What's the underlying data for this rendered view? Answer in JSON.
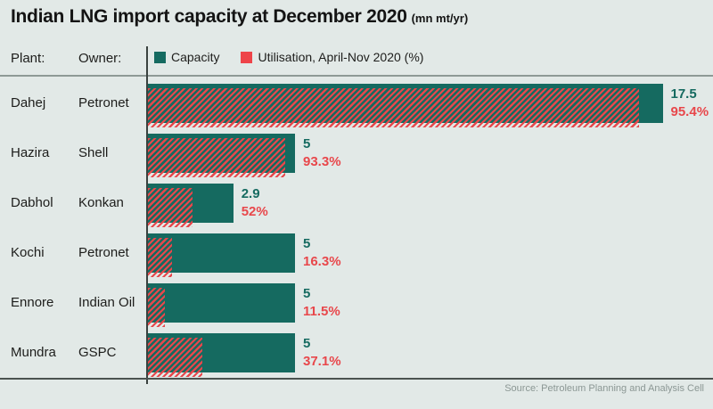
{
  "header": {
    "plant_col": "Plant:",
    "owner_col": "Owner:"
  },
  "chart_data": {
    "type": "bar",
    "orientation": "horizontal",
    "title": "Indian LNG import capacity at December 2020",
    "unit_note": "(mn mt/yr)",
    "legend_position": "top",
    "grid": false,
    "xlim": [
      0,
      19
    ],
    "legend": [
      {
        "label": "Capacity",
        "color": "#156a60"
      },
      {
        "label": "Utilisation, April-Nov 2020 (%)",
        "color": "#ee4449"
      }
    ],
    "rows": [
      {
        "plant": "Dahej",
        "owner": "Petronet",
        "capacity": 17.5,
        "capacity_label": "17.5",
        "utilisation_pct": 95.4,
        "utilisation_label": "95.4%"
      },
      {
        "plant": "Hazira",
        "owner": "Shell",
        "capacity": 5,
        "capacity_label": "5",
        "utilisation_pct": 93.3,
        "utilisation_label": "93.3%"
      },
      {
        "plant": "Dabhol",
        "owner": "Konkan",
        "capacity": 2.9,
        "capacity_label": "2.9",
        "utilisation_pct": 52,
        "utilisation_label": "52%"
      },
      {
        "plant": "Kochi",
        "owner": "Petronet",
        "capacity": 5,
        "capacity_label": "5",
        "utilisation_pct": 16.3,
        "utilisation_label": "16.3%"
      },
      {
        "plant": "Ennore",
        "owner": "Indian Oil",
        "capacity": 5,
        "capacity_label": "5",
        "utilisation_pct": 11.5,
        "utilisation_label": "11.5%"
      },
      {
        "plant": "Mundra",
        "owner": "GSPC",
        "capacity": 5,
        "capacity_label": "5",
        "utilisation_pct": 37.1,
        "utilisation_label": "37.1%"
      }
    ],
    "colors": {
      "capacity": "#156a60",
      "utilisation": "#e8474b",
      "background": "#e2e9e7"
    },
    "source": "Source: Petroleum Planning and Analysis Cell"
  }
}
